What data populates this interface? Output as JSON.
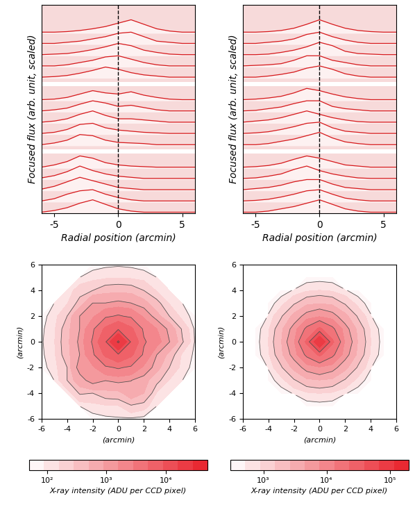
{
  "chart_data": [
    {
      "type": "profiles",
      "xlabel": "Radial position (arcmin)",
      "ylabel": "Focused flux (arb. unit, scaled)",
      "xlim": [
        -6,
        6
      ],
      "xticks": [
        -5,
        0,
        5
      ],
      "ylim": [
        0,
        18.5
      ],
      "tick_labels": "x",
      "color": "#d7191c",
      "reference_x": 0,
      "x": [
        -6,
        -5,
        -4,
        -3,
        -2,
        -1,
        0,
        1,
        2,
        3,
        4,
        5,
        6
      ],
      "groups": [
        [
          [
            0.1,
            0.1,
            0.15,
            0.25,
            0.4,
            0.6,
            0.9,
            1.2,
            0.8,
            0.4,
            0.2,
            0.1,
            0.1
          ],
          [
            0.1,
            0.1,
            0.2,
            0.3,
            0.5,
            0.7,
            1.0,
            1.1,
            0.7,
            0.3,
            0.2,
            0.1,
            0.1
          ],
          [
            0.1,
            0.15,
            0.2,
            0.35,
            0.55,
            0.8,
            1.1,
            0.9,
            0.5,
            0.3,
            0.15,
            0.1,
            0.1
          ],
          [
            0.1,
            0.1,
            0.2,
            0.4,
            0.6,
            0.9,
            1.0,
            0.7,
            0.4,
            0.2,
            0.1,
            0.1,
            0.1
          ],
          [
            0.1,
            0.15,
            0.25,
            0.45,
            0.7,
            1.0,
            0.8,
            0.5,
            0.3,
            0.2,
            0.1,
            0.1,
            0.1
          ]
        ],
        [
          [
            0.1,
            0.15,
            0.3,
            0.6,
            0.9,
            0.7,
            0.6,
            0.8,
            0.5,
            0.3,
            0.15,
            0.1,
            0.1
          ],
          [
            0.1,
            0.2,
            0.35,
            0.7,
            1.0,
            0.8,
            0.5,
            0.6,
            0.4,
            0.2,
            0.1,
            0.1,
            0.1
          ],
          [
            0.1,
            0.2,
            0.4,
            0.8,
            1.1,
            0.7,
            0.4,
            0.4,
            0.3,
            0.2,
            0.1,
            0.1,
            0.1
          ],
          [
            0.1,
            0.2,
            0.45,
            0.9,
            1.0,
            0.6,
            0.4,
            0.3,
            0.2,
            0.15,
            0.1,
            0.1,
            0.1
          ],
          [
            0.1,
            0.25,
            0.5,
            1.0,
            0.9,
            0.5,
            0.3,
            0.25,
            0.2,
            0.1,
            0.1,
            0.1,
            0.1
          ]
        ],
        [
          [
            0.1,
            0.3,
            0.6,
            1.1,
            0.9,
            0.5,
            0.3,
            0.2,
            0.15,
            0.1,
            0.1,
            0.1,
            0.1
          ],
          [
            0.15,
            0.35,
            0.7,
            1.2,
            0.8,
            0.5,
            0.3,
            0.2,
            0.1,
            0.1,
            0.1,
            0.1,
            0.1
          ],
          [
            0.15,
            0.4,
            0.8,
            1.2,
            0.9,
            0.6,
            0.3,
            0.2,
            0.1,
            0.1,
            0.1,
            0.1,
            0.1
          ],
          [
            0.1,
            0.3,
            0.7,
            1.0,
            1.1,
            0.7,
            0.4,
            0.2,
            0.1,
            0.1,
            0.1,
            0.1,
            0.1
          ],
          [
            0.1,
            0.25,
            0.5,
            0.9,
            1.2,
            0.8,
            0.4,
            0.2,
            0.1,
            0.1,
            0.1,
            0.1,
            0.1
          ]
        ]
      ]
    },
    {
      "type": "profiles",
      "xlabel": "Radial position (arcmin)",
      "ylabel": "Focused flux (arb. unit, scaled)",
      "xlim": [
        -6,
        6
      ],
      "xticks": [
        -5,
        0,
        5
      ],
      "ylim": [
        0,
        18.5
      ],
      "tick_labels": "x",
      "color": "#d7191c",
      "reference_x": 0,
      "x": [
        -6,
        -5,
        -4,
        -3,
        -2,
        -1,
        0,
        1,
        2,
        3,
        4,
        5,
        6
      ],
      "groups": [
        [
          [
            0.1,
            0.1,
            0.15,
            0.25,
            0.45,
            0.8,
            1.2,
            0.8,
            0.45,
            0.25,
            0.15,
            0.1,
            0.1
          ],
          [
            0.1,
            0.1,
            0.2,
            0.3,
            0.5,
            0.9,
            1.1,
            0.7,
            0.4,
            0.2,
            0.1,
            0.1,
            0.1
          ],
          [
            0.1,
            0.1,
            0.15,
            0.3,
            0.5,
            0.8,
            1.2,
            0.9,
            0.4,
            0.2,
            0.15,
            0.1,
            0.1
          ],
          [
            0.1,
            0.15,
            0.2,
            0.3,
            0.6,
            1.0,
            1.0,
            0.6,
            0.4,
            0.2,
            0.1,
            0.1,
            0.1
          ],
          [
            0.1,
            0.1,
            0.2,
            0.35,
            0.55,
            0.9,
            1.1,
            0.8,
            0.4,
            0.2,
            0.1,
            0.1,
            0.1
          ]
        ],
        [
          [
            0.1,
            0.15,
            0.25,
            0.4,
            0.7,
            1.1,
            0.9,
            0.6,
            0.35,
            0.2,
            0.1,
            0.1,
            0.1
          ],
          [
            0.1,
            0.15,
            0.3,
            0.45,
            0.75,
            1.0,
            1.0,
            0.5,
            0.3,
            0.2,
            0.1,
            0.1,
            0.1
          ],
          [
            0.1,
            0.2,
            0.3,
            0.5,
            0.8,
            1.1,
            0.8,
            0.5,
            0.3,
            0.15,
            0.1,
            0.1,
            0.1
          ],
          [
            0.1,
            0.15,
            0.25,
            0.45,
            0.7,
            1.0,
            1.1,
            0.6,
            0.3,
            0.2,
            0.1,
            0.1,
            0.1
          ],
          [
            0.1,
            0.1,
            0.2,
            0.4,
            0.6,
            0.9,
            1.2,
            0.7,
            0.35,
            0.2,
            0.1,
            0.1,
            0.1
          ]
        ],
        [
          [
            0.1,
            0.15,
            0.25,
            0.45,
            0.8,
            1.1,
            0.9,
            0.6,
            0.3,
            0.2,
            0.1,
            0.1,
            0.1
          ],
          [
            0.1,
            0.15,
            0.3,
            0.5,
            0.9,
            1.2,
            0.8,
            0.5,
            0.3,
            0.15,
            0.1,
            0.1,
            0.1
          ],
          [
            0.1,
            0.2,
            0.3,
            0.5,
            0.8,
            1.0,
            1.0,
            0.6,
            0.3,
            0.2,
            0.1,
            0.1,
            0.1
          ],
          [
            0.1,
            0.15,
            0.25,
            0.45,
            0.7,
            1.0,
            1.1,
            0.7,
            0.35,
            0.2,
            0.1,
            0.1,
            0.1
          ],
          [
            0.1,
            0.1,
            0.2,
            0.4,
            0.6,
            0.9,
            1.2,
            0.8,
            0.4,
            0.2,
            0.1,
            0.1,
            0.1
          ]
        ]
      ]
    },
    {
      "type": "contour",
      "xlabel": "(arcmin)",
      "ylabel": "(arcmin)",
      "xlim": [
        -6,
        6
      ],
      "ylim": [
        -6,
        6
      ],
      "xticks": [
        -6,
        -4,
        -2,
        0,
        2,
        4,
        6
      ],
      "yticks": [
        -6,
        -4,
        -2,
        0,
        2,
        4,
        6
      ],
      "color": "#e8202a",
      "x": [
        -6,
        -5,
        -4,
        -3,
        -2,
        -1,
        0,
        1,
        2,
        3,
        4,
        5,
        6
      ],
      "y": [
        -6,
        -5,
        -4,
        -3,
        -2,
        -1,
        0,
        1,
        2,
        3,
        4,
        5,
        6
      ],
      "cells": [
        [
          null,
          null,
          null,
          null,
          65,
          75,
          80,
          75,
          65,
          null,
          null,
          null,
          null
        ],
        [
          null,
          null,
          null,
          90,
          120,
          140,
          150,
          250,
          200,
          90,
          null,
          null,
          null
        ],
        [
          null,
          null,
          100,
          300,
          280,
          380,
          400,
          700,
          500,
          150,
          100,
          null,
          null
        ],
        [
          null,
          90,
          280,
          700,
          1100,
          900,
          1000,
          900,
          600,
          340,
          150,
          90,
          null
        ],
        [
          65,
          120,
          280,
          1100,
          1400,
          2500,
          3000,
          2500,
          1400,
          600,
          280,
          120,
          65
        ],
        [
          75,
          140,
          380,
          900,
          2500,
          5500,
          8000,
          5500,
          2500,
          900,
          380,
          140,
          75
        ],
        [
          80,
          150,
          400,
          1000,
          3000,
          8000,
          30000,
          8000,
          3000,
          2000,
          900,
          300,
          80
        ],
        [
          75,
          140,
          380,
          900,
          2500,
          5500,
          8000,
          5500,
          2500,
          1600,
          700,
          250,
          75
        ],
        [
          65,
          120,
          280,
          900,
          1400,
          2500,
          3000,
          2500,
          1400,
          600,
          280,
          120,
          65
        ],
        [
          null,
          90,
          150,
          340,
          900,
          900,
          1000,
          900,
          600,
          340,
          150,
          90,
          null
        ],
        [
          null,
          null,
          100,
          220,
          280,
          380,
          400,
          380,
          280,
          150,
          100,
          null,
          null
        ],
        [
          null,
          null,
          null,
          90,
          120,
          140,
          150,
          140,
          120,
          90,
          null,
          null,
          null
        ],
        [
          null,
          null,
          null,
          null,
          65,
          75,
          80,
          75,
          65,
          null,
          null,
          null,
          null
        ]
      ],
      "colorbar": {
        "label": "X-ray intensity (ADU per CCD pixel)",
        "range": [
          50,
          50000
        ],
        "ticks": [
          {
            "value": 100,
            "label": "10²"
          },
          {
            "value": 1000,
            "label": "10³"
          },
          {
            "value": 10000,
            "label": "10⁴"
          }
        ]
      }
    },
    {
      "type": "contour",
      "xlabel": "(arcmin)",
      "ylabel": "(arcmin)",
      "xlim": [
        -6,
        6
      ],
      "ylim": [
        -6,
        6
      ],
      "xticks": [
        -6,
        -4,
        -2,
        0,
        2,
        4,
        6
      ],
      "yticks": [
        -6,
        -4,
        -2,
        0,
        2,
        4,
        6
      ],
      "color": "#e8202a",
      "x": [
        -6,
        -5,
        -4,
        -3,
        -2,
        -1,
        0,
        1,
        2,
        3,
        4,
        5,
        6
      ],
      "y": [
        -6,
        -5,
        -4,
        -3,
        -2,
        -1,
        0,
        1,
        2,
        3,
        4,
        5,
        6
      ],
      "cells": [
        [
          null,
          null,
          null,
          null,
          null,
          null,
          null,
          null,
          null,
          null,
          null,
          null,
          null
        ],
        [
          null,
          null,
          null,
          null,
          null,
          330,
          350,
          330,
          null,
          null,
          null,
          null,
          null
        ],
        [
          null,
          null,
          null,
          350,
          550,
          800,
          900,
          800,
          550,
          350,
          null,
          null,
          null
        ],
        [
          null,
          null,
          350,
          700,
          1400,
          2200,
          2500,
          2200,
          1400,
          700,
          350,
          null,
          null
        ],
        [
          null,
          null,
          550,
          1400,
          3000,
          5500,
          7000,
          5500,
          3000,
          1400,
          550,
          null,
          null
        ],
        [
          null,
          330,
          800,
          2200,
          5500,
          15000,
          25000,
          15000,
          5500,
          2200,
          800,
          330,
          null
        ],
        [
          null,
          350,
          900,
          2500,
          7000,
          25000,
          100000,
          25000,
          7000,
          2500,
          900,
          350,
          null
        ],
        [
          null,
          330,
          800,
          2200,
          5500,
          15000,
          25000,
          15000,
          5500,
          2200,
          800,
          330,
          null
        ],
        [
          null,
          null,
          550,
          1400,
          3000,
          5500,
          7000,
          5500,
          3000,
          1400,
          550,
          null,
          null
        ],
        [
          null,
          null,
          350,
          700,
          1400,
          2200,
          2500,
          2200,
          1400,
          700,
          350,
          null,
          null
        ],
        [
          null,
          null,
          null,
          350,
          550,
          800,
          900,
          800,
          550,
          350,
          null,
          null,
          null
        ],
        [
          null,
          null,
          null,
          null,
          null,
          330,
          350,
          330,
          null,
          null,
          null,
          null,
          null
        ],
        [
          null,
          null,
          null,
          null,
          null,
          null,
          null,
          null,
          null,
          null,
          null,
          null,
          null
        ]
      ],
      "colorbar": {
        "label": "X-ray intensity (ADU per CCD pixel)",
        "range": [
          300,
          200000
        ],
        "ticks": [
          {
            "value": 1000,
            "label": "10³"
          },
          {
            "value": 10000,
            "label": "10⁴"
          },
          {
            "value": 100000,
            "label": "10⁵"
          }
        ]
      }
    }
  ]
}
